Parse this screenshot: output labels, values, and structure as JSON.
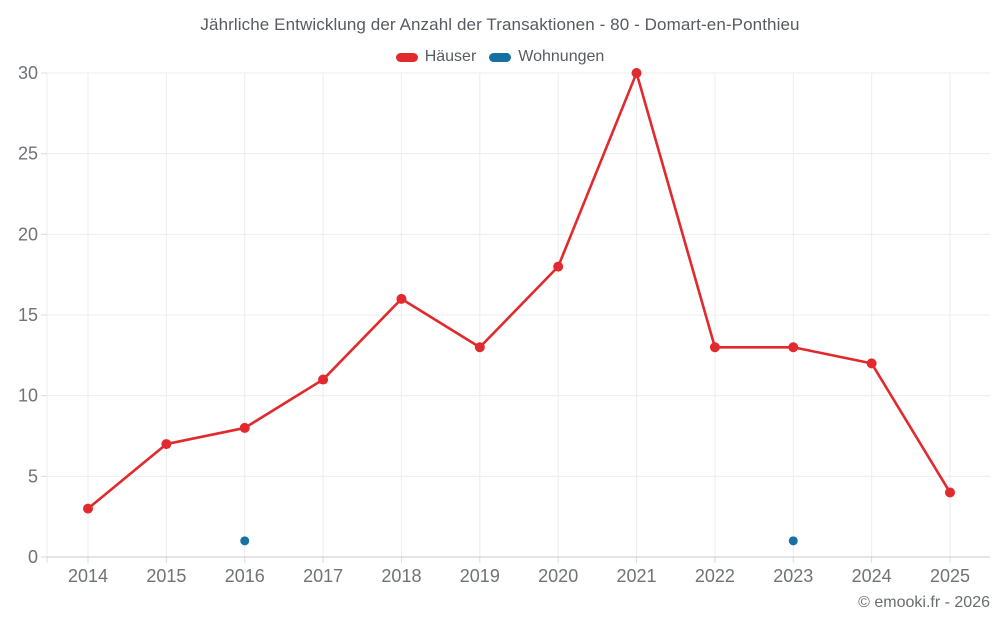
{
  "title": {
    "text": "Jährliche Entwicklung der Anzahl der Transaktionen - 80 - Domart-en-Ponthieu"
  },
  "legend": {
    "items": [
      {
        "label": "Häuser",
        "color": "#e2292d"
      },
      {
        "label": "Wohnungen",
        "color": "#1670a3"
      }
    ]
  },
  "footer": {
    "text": "© emooki.fr - 2026"
  },
  "colors": {
    "background": "#ffffff",
    "grid_line": "#ededed",
    "axis_line": "#cbcbcb",
    "tick_mark": "#dcdcdc",
    "axis_text": "#6f7276",
    "title_text": "#575b60",
    "footer_text": "#696c70",
    "haeuser_red": "#e2292d",
    "wohnungen_blue": "#1670a3"
  },
  "chart_data": {
    "type": "line",
    "title": "Jährliche Entwicklung der Anzahl der Transaktionen - 80 - Domart-en-Ponthieu",
    "xlabel": "",
    "ylabel": "",
    "x": [
      2014,
      2015,
      2016,
      2017,
      2018,
      2019,
      2020,
      2021,
      2022,
      2023,
      2024,
      2025
    ],
    "series": [
      {
        "name": "Häuser",
        "color": "#e2292d",
        "mode": "line+markers",
        "line_width": 2.6,
        "marker_radius": 5,
        "values": [
          3,
          7,
          8,
          11,
          16,
          13,
          18,
          30,
          13,
          13,
          12,
          4
        ]
      },
      {
        "name": "Wohnungen",
        "color": "#1670a3",
        "mode": "markers",
        "line_width": 0,
        "marker_radius": 4.5,
        "values": [
          null,
          null,
          1,
          null,
          null,
          null,
          null,
          null,
          null,
          1,
          null,
          null
        ]
      }
    ],
    "ylim": [
      0,
      30
    ],
    "yticks": [
      0,
      5,
      10,
      15,
      20,
      25,
      30
    ],
    "grid": true,
    "legend_position": "top"
  }
}
